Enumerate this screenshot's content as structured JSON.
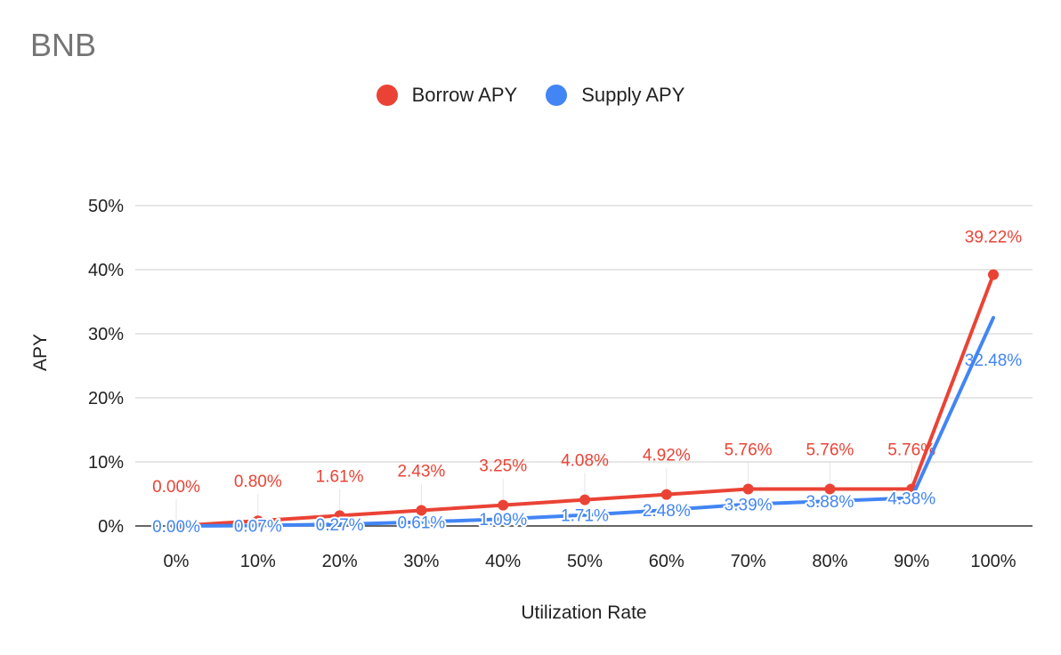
{
  "chart_data": {
    "type": "line",
    "title": "BNB",
    "xlabel": "Utilization Rate",
    "ylabel": "APY",
    "categories": [
      "0%",
      "10%",
      "20%",
      "30%",
      "40%",
      "50%",
      "60%",
      "70%",
      "80%",
      "90%",
      "100%"
    ],
    "ylim": [
      0,
      50
    ],
    "y_ticks": [
      "0%",
      "10%",
      "20%",
      "30%",
      "40%",
      "50%"
    ],
    "y_tick_values": [
      0,
      10,
      20,
      30,
      40,
      50
    ],
    "grid": true,
    "legend_position": "top",
    "series": [
      {
        "name": "Borrow APY",
        "color": "#ea4335",
        "values": [
          0.0,
          0.8,
          1.61,
          2.43,
          3.25,
          4.08,
          4.92,
          5.76,
          5.76,
          5.76,
          39.22
        ],
        "labels": [
          "0.00%",
          "0.80%",
          "1.61%",
          "2.43%",
          "3.25%",
          "4.08%",
          "4.92%",
          "5.76%",
          "5.76%",
          "5.76%",
          "39.22%"
        ]
      },
      {
        "name": "Supply APY",
        "color": "#4285f4",
        "values": [
          0.0,
          0.07,
          0.27,
          0.61,
          1.09,
          1.71,
          2.48,
          3.39,
          3.88,
          4.38,
          32.48
        ],
        "labels": [
          "0.00%",
          "0.07%",
          "0.27%",
          "0.61%",
          "1.09%",
          "1.71%",
          "2.48%",
          "3.39%",
          "3.88%",
          "4.38%",
          "32.48%"
        ]
      }
    ]
  }
}
